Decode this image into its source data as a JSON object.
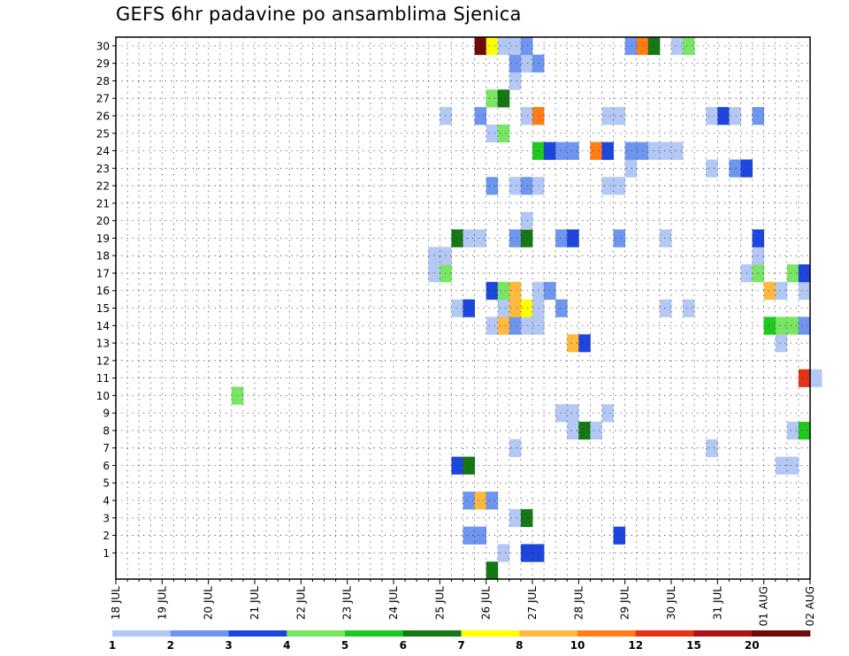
{
  "chart_data": {
    "type": "heatmap",
    "title": "GEFS 6hr padavine po ansamblima Sjenica",
    "xlabel": "",
    "ylabel": "",
    "members": [
      1,
      2,
      3,
      4,
      5,
      6,
      7,
      8,
      9,
      10,
      11,
      12,
      13,
      14,
      15,
      16,
      17,
      18,
      19,
      20,
      21,
      22,
      23,
      24,
      25,
      26,
      27,
      28,
      29,
      30
    ],
    "x_ticks": [
      "18 JUL",
      "19 JUL",
      "20 JUL",
      "21 JUL",
      "22 JUL",
      "23 JUL",
      "24 JUL",
      "25 JUL",
      "26 JUL",
      "27 JUL",
      "28 JUL",
      "29 JUL",
      "30 JUL",
      "31 JUL",
      "01 AUG",
      "02 AUG"
    ],
    "time_step_hours": 6,
    "grid": true,
    "legend": {
      "placement": "bottom",
      "levels": [
        "1",
        "2",
        "3",
        "4",
        "5",
        "6",
        "7",
        "8",
        "10",
        "12",
        "15",
        "20"
      ],
      "colors": [
        "#b4c8f5",
        "#6e96f0",
        "#1e46dc",
        "#78e664",
        "#1ec81e",
        "#147814",
        "#ffff00",
        "#ffb93c",
        "#ff7d14",
        "#e63214",
        "#aa1414",
        "#6e0a0a"
      ]
    },
    "cells": [
      {
        "member": 0,
        "step": 32,
        "bin": 5
      },
      {
        "member": 1,
        "step": 33,
        "bin": 0
      },
      {
        "member": 1,
        "step": 35,
        "bin": 2
      },
      {
        "member": 1,
        "step": 36,
        "bin": 2
      },
      {
        "member": 2,
        "step": 30,
        "bin": 1
      },
      {
        "member": 2,
        "step": 31,
        "bin": 1
      },
      {
        "member": 2,
        "step": 43,
        "bin": 2
      },
      {
        "member": 3,
        "step": 34,
        "bin": 0
      },
      {
        "member": 3,
        "step": 35,
        "bin": 5
      },
      {
        "member": 4,
        "step": 30,
        "bin": 1
      },
      {
        "member": 4,
        "step": 31,
        "bin": 7
      },
      {
        "member": 4,
        "step": 32,
        "bin": 1
      },
      {
        "member": 6,
        "step": 29,
        "bin": 2
      },
      {
        "member": 6,
        "step": 30,
        "bin": 5
      },
      {
        "member": 6,
        "step": 57,
        "bin": 0
      },
      {
        "member": 6,
        "step": 58,
        "bin": 0
      },
      {
        "member": 7,
        "step": 34,
        "bin": 0
      },
      {
        "member": 7,
        "step": 51,
        "bin": 0
      },
      {
        "member": 8,
        "step": 39,
        "bin": 0
      },
      {
        "member": 8,
        "step": 40,
        "bin": 5
      },
      {
        "member": 8,
        "step": 41,
        "bin": 0
      },
      {
        "member": 8,
        "step": 58,
        "bin": 0
      },
      {
        "member": 8,
        "step": 59,
        "bin": 4
      },
      {
        "member": 9,
        "step": 38,
        "bin": 0
      },
      {
        "member": 9,
        "step": 39,
        "bin": 0
      },
      {
        "member": 9,
        "step": 42,
        "bin": 0
      },
      {
        "member": 10,
        "step": 10,
        "bin": 3
      },
      {
        "member": 11,
        "step": 59,
        "bin": 9
      },
      {
        "member": 11,
        "step": 60,
        "bin": 0
      },
      {
        "member": 13,
        "step": 39,
        "bin": 7
      },
      {
        "member": 13,
        "step": 40,
        "bin": 2
      },
      {
        "member": 13,
        "step": 57,
        "bin": 0
      },
      {
        "member": 14,
        "step": 32,
        "bin": 0
      },
      {
        "member": 14,
        "step": 33,
        "bin": 7
      },
      {
        "member": 14,
        "step": 34,
        "bin": 1
      },
      {
        "member": 14,
        "step": 35,
        "bin": 0
      },
      {
        "member": 14,
        "step": 36,
        "bin": 0
      },
      {
        "member": 14,
        "step": 56,
        "bin": 4
      },
      {
        "member": 14,
        "step": 57,
        "bin": 3
      },
      {
        "member": 14,
        "step": 58,
        "bin": 3
      },
      {
        "member": 14,
        "step": 59,
        "bin": 1
      },
      {
        "member": 15,
        "step": 29,
        "bin": 0
      },
      {
        "member": 15,
        "step": 30,
        "bin": 2
      },
      {
        "member": 15,
        "step": 33,
        "bin": 0
      },
      {
        "member": 15,
        "step": 34,
        "bin": 7
      },
      {
        "member": 15,
        "step": 35,
        "bin": 6
      },
      {
        "member": 15,
        "step": 36,
        "bin": 0
      },
      {
        "member": 15,
        "step": 38,
        "bin": 1
      },
      {
        "member": 15,
        "step": 47,
        "bin": 0
      },
      {
        "member": 15,
        "step": 49,
        "bin": 0
      },
      {
        "member": 16,
        "step": 32,
        "bin": 2
      },
      {
        "member": 16,
        "step": 33,
        "bin": 3
      },
      {
        "member": 16,
        "step": 34,
        "bin": 7
      },
      {
        "member": 16,
        "step": 36,
        "bin": 0
      },
      {
        "member": 16,
        "step": 37,
        "bin": 1
      },
      {
        "member": 16,
        "step": 56,
        "bin": 7
      },
      {
        "member": 16,
        "step": 57,
        "bin": 0
      },
      {
        "member": 16,
        "step": 59,
        "bin": 0
      },
      {
        "member": 17,
        "step": 27,
        "bin": 0
      },
      {
        "member": 17,
        "step": 28,
        "bin": 3
      },
      {
        "member": 17,
        "step": 54,
        "bin": 0
      },
      {
        "member": 17,
        "step": 55,
        "bin": 3
      },
      {
        "member": 17,
        "step": 58,
        "bin": 3
      },
      {
        "member": 17,
        "step": 59,
        "bin": 2
      },
      {
        "member": 18,
        "step": 27,
        "bin": 0
      },
      {
        "member": 18,
        "step": 28,
        "bin": 0
      },
      {
        "member": 18,
        "step": 55,
        "bin": 0
      },
      {
        "member": 19,
        "step": 29,
        "bin": 5
      },
      {
        "member": 19,
        "step": 30,
        "bin": 0
      },
      {
        "member": 19,
        "step": 31,
        "bin": 0
      },
      {
        "member": 19,
        "step": 34,
        "bin": 1
      },
      {
        "member": 19,
        "step": 35,
        "bin": 5
      },
      {
        "member": 19,
        "step": 38,
        "bin": 1
      },
      {
        "member": 19,
        "step": 39,
        "bin": 2
      },
      {
        "member": 19,
        "step": 43,
        "bin": 1
      },
      {
        "member": 19,
        "step": 47,
        "bin": 0
      },
      {
        "member": 19,
        "step": 55,
        "bin": 2
      },
      {
        "member": 20,
        "step": 35,
        "bin": 0
      },
      {
        "member": 22,
        "step": 32,
        "bin": 1
      },
      {
        "member": 22,
        "step": 34,
        "bin": 0
      },
      {
        "member": 22,
        "step": 35,
        "bin": 1
      },
      {
        "member": 22,
        "step": 36,
        "bin": 0
      },
      {
        "member": 22,
        "step": 42,
        "bin": 0
      },
      {
        "member": 22,
        "step": 43,
        "bin": 0
      },
      {
        "member": 23,
        "step": 44,
        "bin": 0
      },
      {
        "member": 23,
        "step": 51,
        "bin": 0
      },
      {
        "member": 23,
        "step": 53,
        "bin": 1
      },
      {
        "member": 23,
        "step": 54,
        "bin": 2
      },
      {
        "member": 24,
        "step": 36,
        "bin": 4
      },
      {
        "member": 24,
        "step": 37,
        "bin": 2
      },
      {
        "member": 24,
        "step": 38,
        "bin": 1
      },
      {
        "member": 24,
        "step": 39,
        "bin": 1
      },
      {
        "member": 24,
        "step": 41,
        "bin": 8
      },
      {
        "member": 24,
        "step": 42,
        "bin": 2
      },
      {
        "member": 24,
        "step": 44,
        "bin": 1
      },
      {
        "member": 24,
        "step": 45,
        "bin": 1
      },
      {
        "member": 24,
        "step": 46,
        "bin": 0
      },
      {
        "member": 24,
        "step": 47,
        "bin": 0
      },
      {
        "member": 24,
        "step": 48,
        "bin": 0
      },
      {
        "member": 25,
        "step": 32,
        "bin": 0
      },
      {
        "member": 25,
        "step": 33,
        "bin": 3
      },
      {
        "member": 26,
        "step": 28,
        "bin": 0
      },
      {
        "member": 26,
        "step": 31,
        "bin": 1
      },
      {
        "member": 26,
        "step": 35,
        "bin": 0
      },
      {
        "member": 26,
        "step": 36,
        "bin": 8
      },
      {
        "member": 26,
        "step": 42,
        "bin": 0
      },
      {
        "member": 26,
        "step": 43,
        "bin": 0
      },
      {
        "member": 26,
        "step": 51,
        "bin": 0
      },
      {
        "member": 26,
        "step": 52,
        "bin": 2
      },
      {
        "member": 26,
        "step": 53,
        "bin": 0
      },
      {
        "member": 26,
        "step": 55,
        "bin": 1
      },
      {
        "member": 27,
        "step": 32,
        "bin": 3
      },
      {
        "member": 27,
        "step": 33,
        "bin": 5
      },
      {
        "member": 28,
        "step": 34,
        "bin": 0
      },
      {
        "member": 29,
        "step": 34,
        "bin": 1
      },
      {
        "member": 29,
        "step": 35,
        "bin": 0
      },
      {
        "member": 29,
        "step": 36,
        "bin": 1
      },
      {
        "member": 30,
        "step": 31,
        "bin": 11
      },
      {
        "member": 30,
        "step": 32,
        "bin": 6
      },
      {
        "member": 30,
        "step": 33,
        "bin": 0
      },
      {
        "member": 30,
        "step": 34,
        "bin": 0
      },
      {
        "member": 30,
        "step": 35,
        "bin": 1
      },
      {
        "member": 30,
        "step": 44,
        "bin": 1
      },
      {
        "member": 30,
        "step": 45,
        "bin": 8
      },
      {
        "member": 30,
        "step": 46,
        "bin": 5
      },
      {
        "member": 30,
        "step": 48,
        "bin": 0
      },
      {
        "member": 30,
        "step": 49,
        "bin": 3
      }
    ]
  }
}
